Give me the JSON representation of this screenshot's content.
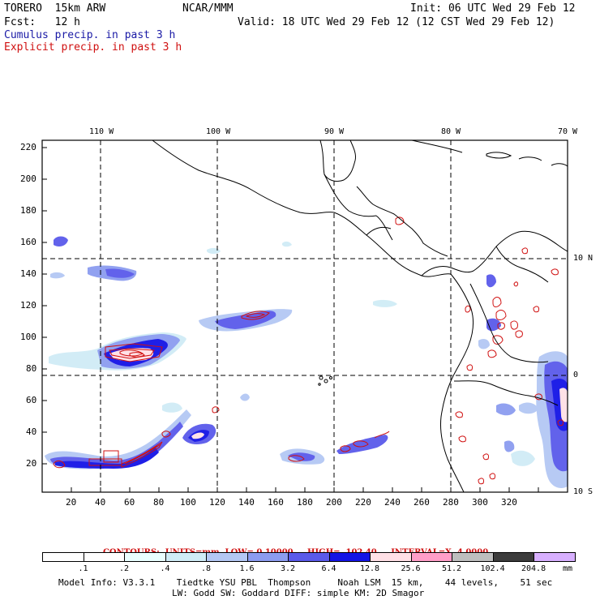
{
  "header": {
    "model": "TORERO  15km ARW",
    "center": "NCAR/MMM",
    "init": "Init: 06 UTC Wed 29 Feb 12",
    "fcst": "Fcst:   12 h",
    "valid": "Valid: 18 UTC Wed 29 Feb 12 (12 CST Wed 29 Feb 12)",
    "line_cumulus": "Cumulus precip. in past 3 h",
    "line_explicit": "Explicit precip. in past 3 h"
  },
  "map": {
    "top_lon_labels": [
      "110 W",
      "100 W",
      "90 W",
      "80 W",
      "70 W"
    ],
    "right_lat_labels": [
      "10 N",
      "0",
      "10 S"
    ],
    "y_ticks": [
      "220",
      "200",
      "180",
      "160",
      "140",
      "120",
      "100",
      "80",
      "60",
      "40",
      "20"
    ],
    "x_ticks": [
      "20",
      "40",
      "60",
      "80",
      "100",
      "120",
      "140",
      "160",
      "180",
      "200",
      "220",
      "240",
      "260",
      "280",
      "300",
      "320"
    ]
  },
  "contours_line": {
    "prefix": "CONTOURS:  UNITS=mm  LOW= 0.10000",
    "high": "HIGH=  102.40",
    "interval": "INTERVAL=X  4.0000"
  },
  "legend": {
    "labels": [
      ".1",
      ".2",
      ".4",
      ".8",
      "1.6",
      "3.2",
      "6.4",
      "12.8",
      "25.6",
      "51.2",
      "102.4",
      "204.8"
    ],
    "unit": "mm",
    "colors": [
      "#ffffff",
      "#ffffff",
      "#eaffff",
      "#d0ecf6",
      "#b4c8f4",
      "#8c9cf0",
      "#5a5aea",
      "#1414e6",
      "#ffe0e6",
      "#ff9ec8",
      "#bebebe",
      "#3c3c3c",
      "#d8b0ff"
    ]
  },
  "footer": {
    "line1": "Model Info: V3.3.1    Tiedtke YSU PBL  Thompson     Noah LSM  15 km,    44 levels,    51 sec",
    "line2": "LW: Godd SW: Goddard DIFF: simple KM: 2D Smagor"
  }
}
